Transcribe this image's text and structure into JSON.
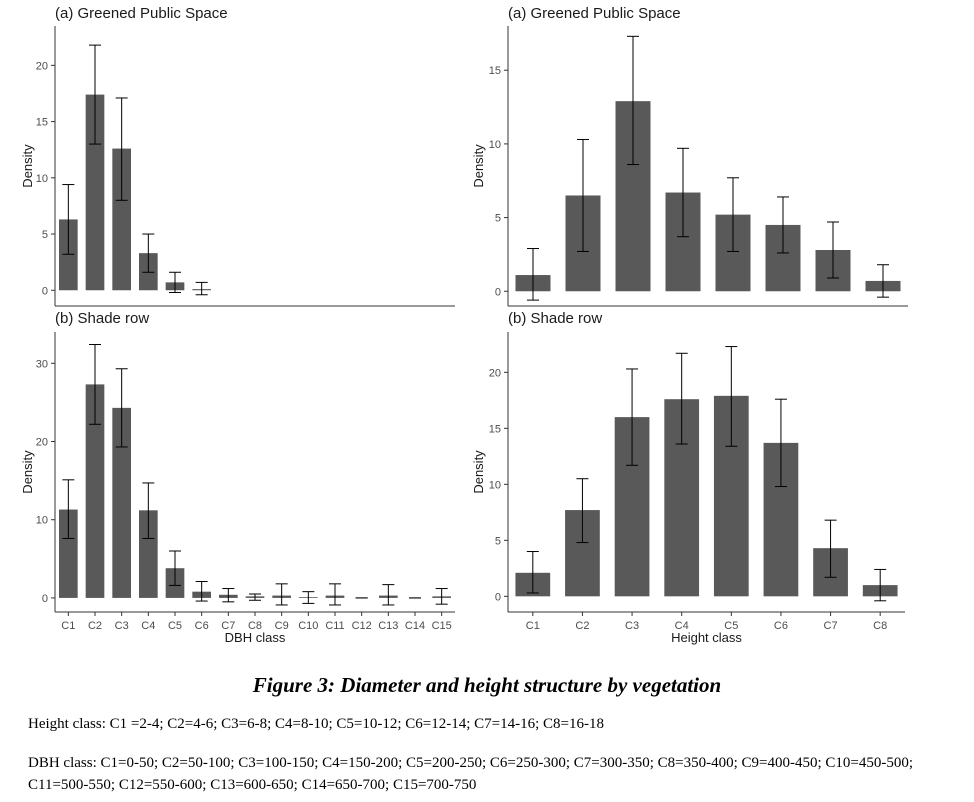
{
  "figure": {
    "caption": "Figure 3: Diameter and height structure by vegetation",
    "height_note": "Height class: C1 =2-4; C2=4-6; C3=6-8; C4=8-10; C5=10-12; C6=12-14; C7=14-16; C8=16-18",
    "dbh_note": "DBH class: C1=0-50; C2=50-100; C3=100-150; C4=150-200; C5=200-250; C6=250-300; C7=300-350; C8=350-400; C9=400-450; C10=450-500; C11=500-550; C12=550-600; C13=600-650; C14=650-700; C15=700-750"
  },
  "colors": {
    "bar": "#595959",
    "axis": "#333333",
    "error": "#000000"
  },
  "chart_data": [
    {
      "id": "dbh-greened",
      "type": "bar",
      "title": "(a) Greened Public Space",
      "xlabel": "",
      "ylabel": "Density",
      "categories": [
        "C1",
        "C2",
        "C3",
        "C4",
        "C5",
        "C6",
        "C7",
        "C8",
        "C9",
        "C10",
        "C11",
        "C12",
        "C13",
        "C14",
        "C15"
      ],
      "values": [
        6.3,
        17.4,
        12.6,
        3.3,
        0.7,
        0.1,
        null,
        null,
        null,
        null,
        null,
        null,
        null,
        null,
        null
      ],
      "error_low": [
        3.2,
        13.0,
        8.0,
        1.6,
        -0.2,
        -0.4,
        null,
        null,
        null,
        null,
        null,
        null,
        null,
        null,
        null
      ],
      "error_high": [
        9.4,
        21.8,
        17.1,
        5.0,
        1.6,
        0.7,
        null,
        null,
        null,
        null,
        null,
        null,
        null,
        null,
        null
      ],
      "yticks": [
        0,
        5,
        10,
        15,
        20
      ],
      "ylim": [
        -1.4,
        23.5
      ],
      "show_xticks": false,
      "grid": false
    },
    {
      "id": "dbh-shade",
      "type": "bar",
      "title": "(b) Shade row",
      "xlabel": "DBH class",
      "ylabel": "Density",
      "categories": [
        "C1",
        "C2",
        "C3",
        "C4",
        "C5",
        "C6",
        "C7",
        "C8",
        "C9",
        "C10",
        "C11",
        "C12",
        "C13",
        "C14",
        "C15"
      ],
      "values": [
        11.3,
        27.3,
        24.3,
        11.2,
        3.8,
        0.8,
        0.4,
        0.2,
        0.3,
        0.1,
        0.3,
        0.0,
        0.3,
        0.0,
        0.2
      ],
      "error_low": [
        7.6,
        22.2,
        19.3,
        7.6,
        1.6,
        -0.4,
        -0.5,
        -0.3,
        -0.9,
        -0.7,
        -0.9,
        0.0,
        -0.9,
        0.0,
        -0.8
      ],
      "error_high": [
        15.1,
        32.4,
        29.3,
        14.7,
        6.0,
        2.1,
        1.2,
        0.5,
        1.8,
        0.8,
        1.8,
        0.0,
        1.7,
        0.0,
        1.2
      ],
      "yticks": [
        0,
        10,
        20,
        30
      ],
      "ylim": [
        -1.8,
        34.0
      ],
      "show_xticks": true,
      "grid": false
    },
    {
      "id": "height-greened",
      "type": "bar",
      "title": "(a) Greened Public Space",
      "xlabel": "",
      "ylabel": "Density",
      "categories": [
        "C1",
        "C2",
        "C3",
        "C4",
        "C5",
        "C6",
        "C7",
        "C8"
      ],
      "values": [
        1.1,
        6.5,
        12.9,
        6.7,
        5.2,
        4.5,
        2.8,
        0.7
      ],
      "error_low": [
        -0.6,
        2.7,
        8.6,
        3.7,
        2.7,
        2.6,
        0.9,
        -0.4
      ],
      "error_high": [
        2.9,
        10.3,
        17.3,
        9.7,
        7.7,
        6.4,
        4.7,
        1.8
      ],
      "yticks": [
        0,
        5,
        10,
        15
      ],
      "ylim": [
        -1.0,
        18.0
      ],
      "show_xticks": false,
      "grid": false
    },
    {
      "id": "height-shade",
      "type": "bar",
      "title": "(b) Shade row",
      "xlabel": "Height class",
      "ylabel": "Density",
      "categories": [
        "C1",
        "C2",
        "C3",
        "C4",
        "C5",
        "C6",
        "C7",
        "C8"
      ],
      "values": [
        2.1,
        7.7,
        16.0,
        17.6,
        17.9,
        13.7,
        4.3,
        1.0
      ],
      "error_low": [
        0.3,
        4.8,
        11.7,
        13.6,
        13.4,
        9.8,
        1.7,
        -0.4
      ],
      "error_high": [
        4.0,
        10.5,
        20.3,
        21.7,
        22.3,
        17.6,
        6.8,
        2.4
      ],
      "yticks": [
        0,
        5,
        10,
        15,
        20
      ],
      "ylim": [
        -1.4,
        23.6
      ],
      "show_xticks": true,
      "grid": false
    }
  ]
}
